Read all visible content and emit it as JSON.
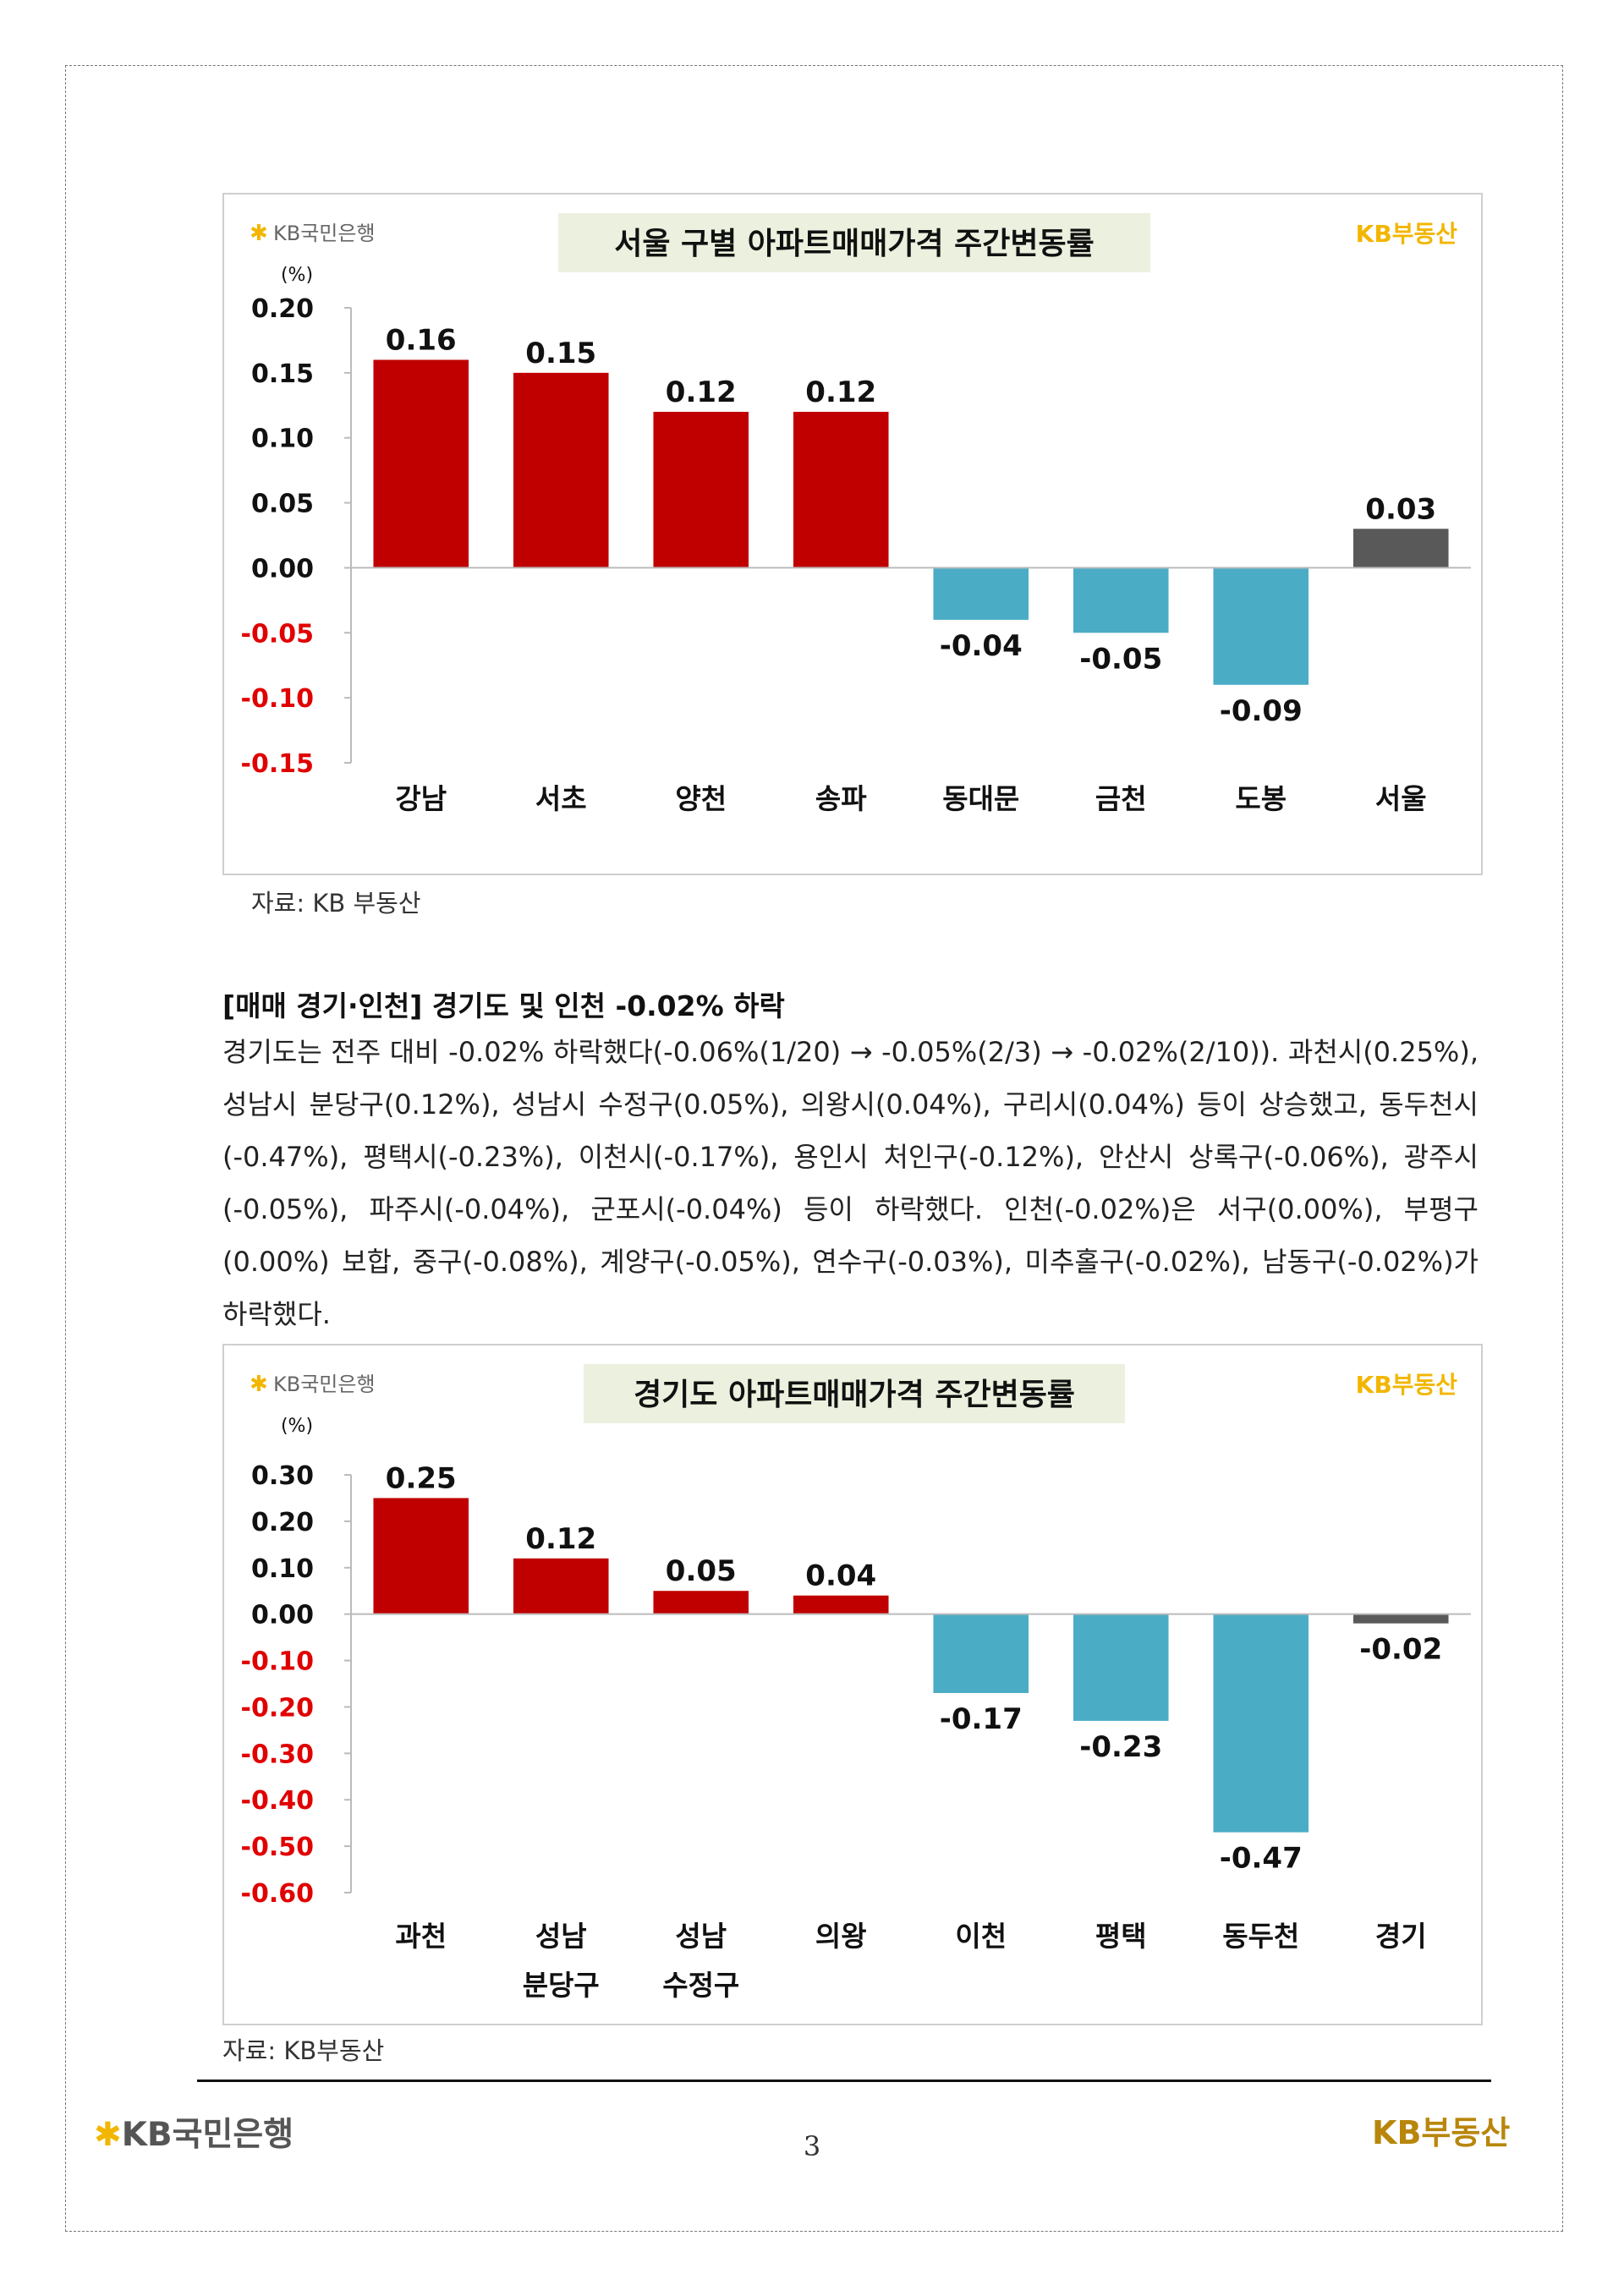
{
  "brand": {
    "bank_logo_text": "KB국민은행",
    "realestate_logo_text": "KB부동산",
    "colors": {
      "positive": "#c00000",
      "negative": "#4bacc6",
      "total": "#595959",
      "neg_label": "#e00000",
      "title_bg": "#ebf1de",
      "logo_yellow": "#f2b600"
    }
  },
  "charts": [
    {
      "title": "서울 구별 아파트매매가격 주간변동률",
      "unit": "(%)",
      "source": "자료: KB 부동산",
      "chart_data": {
        "type": "bar",
        "categories": [
          [
            "강남"
          ],
          [
            "서초"
          ],
          [
            "양천"
          ],
          [
            "송파"
          ],
          [
            "동대문"
          ],
          [
            "금천"
          ],
          [
            "도봉"
          ],
          [
            "서울"
          ]
        ],
        "values": [
          0.16,
          0.15,
          0.12,
          0.12,
          -0.04,
          -0.05,
          -0.09,
          0.03
        ],
        "value_labels": [
          "0.16",
          "0.15",
          "0.12",
          "0.12",
          "-0.04",
          "-0.05",
          "-0.09",
          "0.03"
        ],
        "ylim": [
          -0.15,
          0.2
        ],
        "yticks": [
          0.2,
          0.15,
          0.1,
          0.05,
          0.0,
          -0.05,
          -0.1,
          -0.15
        ],
        "ytick_labels": [
          "0.20",
          "0.15",
          "0.10",
          "0.05",
          "0.00",
          "-0.05",
          "-0.10",
          "-0.15"
        ],
        "last_bar_is_total": true,
        "grid": false,
        "legend": "none"
      }
    },
    {
      "title": "경기도 아파트매매가격 주간변동률",
      "unit": "(%)",
      "source": "자료: KB부동산",
      "chart_data": {
        "type": "bar",
        "categories": [
          [
            "과천"
          ],
          [
            "성남",
            "분당구"
          ],
          [
            "성남",
            "수정구"
          ],
          [
            "의왕"
          ],
          [
            "이천"
          ],
          [
            "평택"
          ],
          [
            "동두천"
          ],
          [
            "경기"
          ]
        ],
        "values": [
          0.25,
          0.12,
          0.05,
          0.04,
          -0.17,
          -0.23,
          -0.47,
          -0.02
        ],
        "value_labels": [
          "0.25",
          "0.12",
          "0.05",
          "0.04",
          "-0.17",
          "-0.23",
          "-0.47",
          "-0.02"
        ],
        "ylim": [
          -0.6,
          0.3
        ],
        "yticks": [
          0.3,
          0.2,
          0.1,
          0.0,
          -0.1,
          -0.2,
          -0.3,
          -0.4,
          -0.5,
          -0.6
        ],
        "ytick_labels": [
          "0.30",
          "0.20",
          "0.10",
          "0.00",
          "-0.10",
          "-0.20",
          "-0.30",
          "-0.40",
          "-0.50",
          "-0.60"
        ],
        "last_bar_is_total": true,
        "grid": false,
        "legend": "none"
      }
    }
  ],
  "section": {
    "heading": "[매매 경기·인천] 경기도 및 인천 -0.02% 하락",
    "paragraph": "경기도는 전주 대비 -0.02% 하락했다(-0.06%(1/20) → -0.05%(2/3) → -0.02%(2/10)). 과천시(0.25%), 성남시 분당구(0.12%), 성남시 수정구(0.05%), 의왕시(0.04%), 구리시(0.04%) 등이 상승했고, 동두천시(-0.47%), 평택시(-0.23%), 이천시(-0.17%), 용인시 처인구(-0.12%), 안산시 상록구(-0.06%), 광주시(-0.05%), 파주시(-0.04%), 군포시(-0.04%) 등이 하락했다. 인천(-0.02%)은 서구(0.00%), 부평구(0.00%) 보합, 중구(-0.08%), 계양구(-0.05%), 연수구(-0.03%), 미추홀구(-0.02%), 남동구(-0.02%)가 하락했다."
  },
  "footer": {
    "page_number": "3"
  }
}
